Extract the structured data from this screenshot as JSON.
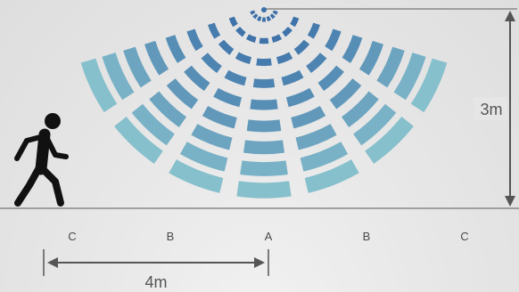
{
  "zones": [
    "C",
    "B",
    "A",
    "B",
    "C"
  ],
  "height_label": "3m",
  "distance_label": "4m",
  "colors": {
    "wave_inner": "#3b6fa8",
    "wave_outer": "#86c0cc",
    "line": "#666666",
    "figure": "#111111"
  },
  "icons": {
    "sensor": "sensor-dot-icon",
    "person": "walking-person-icon"
  }
}
